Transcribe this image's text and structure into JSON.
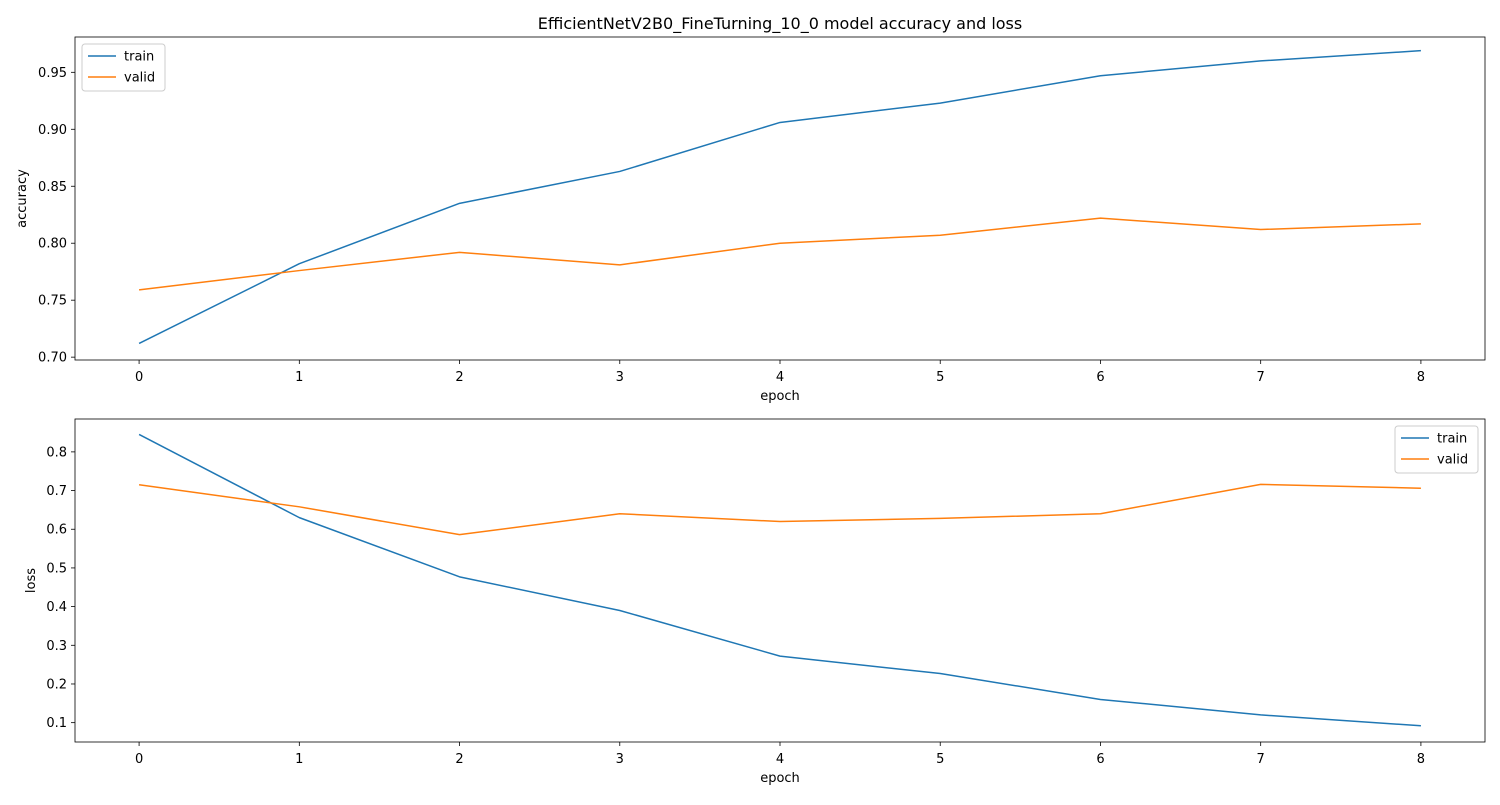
{
  "page_title": "EfficientNetV2B0_FineTurning_10_0 model accuracy and loss",
  "colors": {
    "train": "#1f77b4",
    "valid": "#ff7f0e"
  },
  "chart_data": [
    {
      "type": "line",
      "ylabel": "accuracy",
      "xlabel": "epoch",
      "x": [
        0,
        1,
        2,
        3,
        4,
        5,
        6,
        7,
        8
      ],
      "xlim": [
        -0.4,
        8.4
      ],
      "ylim": [
        0.6975,
        0.981
      ],
      "yticks": [
        0.7,
        0.75,
        0.8,
        0.85,
        0.9,
        0.95
      ],
      "ytick_labels": [
        "0.70",
        "0.75",
        "0.80",
        "0.85",
        "0.90",
        "0.95"
      ],
      "xtick_labels": [
        "0",
        "1",
        "2",
        "3",
        "4",
        "5",
        "6",
        "7",
        "8"
      ],
      "legend": "top-left",
      "grid": false,
      "series": [
        {
          "name": "train",
          "values": [
            0.712,
            0.782,
            0.835,
            0.863,
            0.906,
            0.923,
            0.947,
            0.96,
            0.969
          ]
        },
        {
          "name": "valid",
          "values": [
            0.759,
            0.776,
            0.792,
            0.781,
            0.8,
            0.807,
            0.822,
            0.812,
            0.817
          ]
        }
      ]
    },
    {
      "type": "line",
      "ylabel": "loss",
      "xlabel": "epoch",
      "x": [
        0,
        1,
        2,
        3,
        4,
        5,
        6,
        7,
        8
      ],
      "xlim": [
        -0.4,
        8.4
      ],
      "ylim": [
        0.05,
        0.885
      ],
      "yticks": [
        0.1,
        0.2,
        0.3,
        0.4,
        0.5,
        0.6,
        0.7,
        0.8
      ],
      "ytick_labels": [
        "0.1",
        "0.2",
        "0.3",
        "0.4",
        "0.5",
        "0.6",
        "0.7",
        "0.8"
      ],
      "xtick_labels": [
        "0",
        "1",
        "2",
        "3",
        "4",
        "5",
        "6",
        "7",
        "8"
      ],
      "legend": "top-right",
      "grid": false,
      "series": [
        {
          "name": "train",
          "values": [
            0.845,
            0.63,
            0.477,
            0.39,
            0.272,
            0.227,
            0.16,
            0.12,
            0.092
          ]
        },
        {
          "name": "valid",
          "values": [
            0.715,
            0.658,
            0.586,
            0.64,
            0.62,
            0.628,
            0.64,
            0.716,
            0.706
          ]
        }
      ]
    }
  ]
}
